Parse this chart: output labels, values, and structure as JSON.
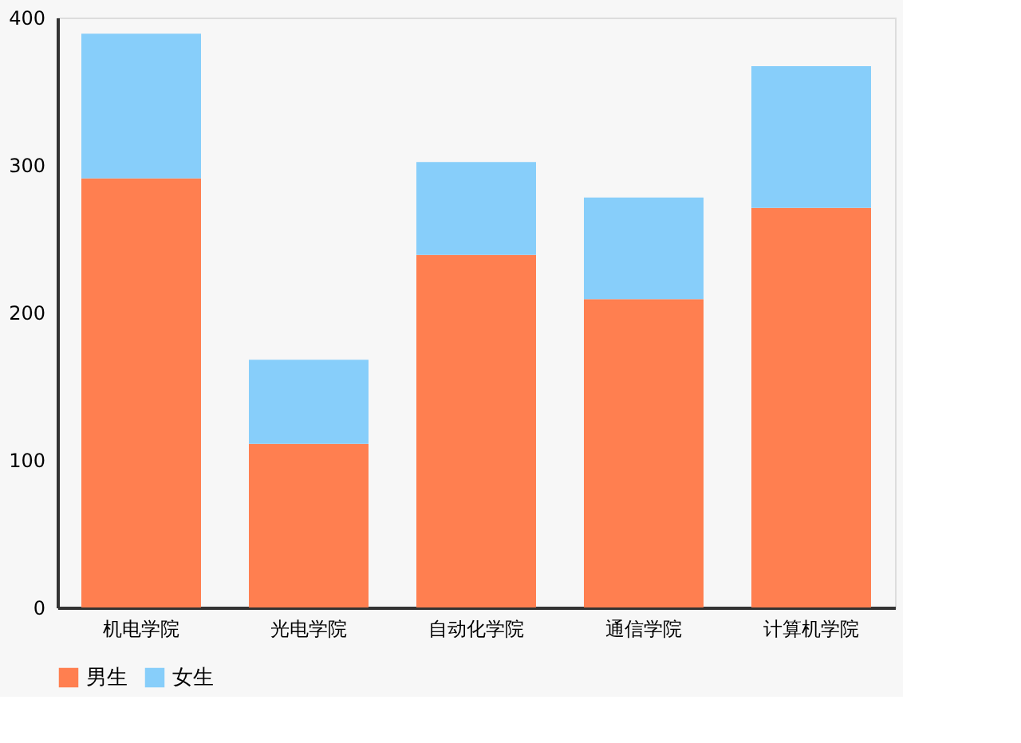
{
  "chart_data": {
    "type": "bar",
    "stacked": true,
    "categories": [
      "机电学院",
      "光电学院",
      "自动化学院",
      "通信学院",
      "计算机学院"
    ],
    "series": [
      {
        "name": "男生",
        "color": "#ff7f50",
        "values": [
          291,
          111,
          239,
          209,
          271
        ]
      },
      {
        "name": "女生",
        "color": "#87cefa",
        "values": [
          98,
          57,
          63,
          69,
          96
        ]
      }
    ],
    "ylim": [
      0,
      400
    ],
    "yticks": [
      0,
      100,
      200,
      300,
      400
    ],
    "grid": false,
    "legend": "bottom"
  }
}
